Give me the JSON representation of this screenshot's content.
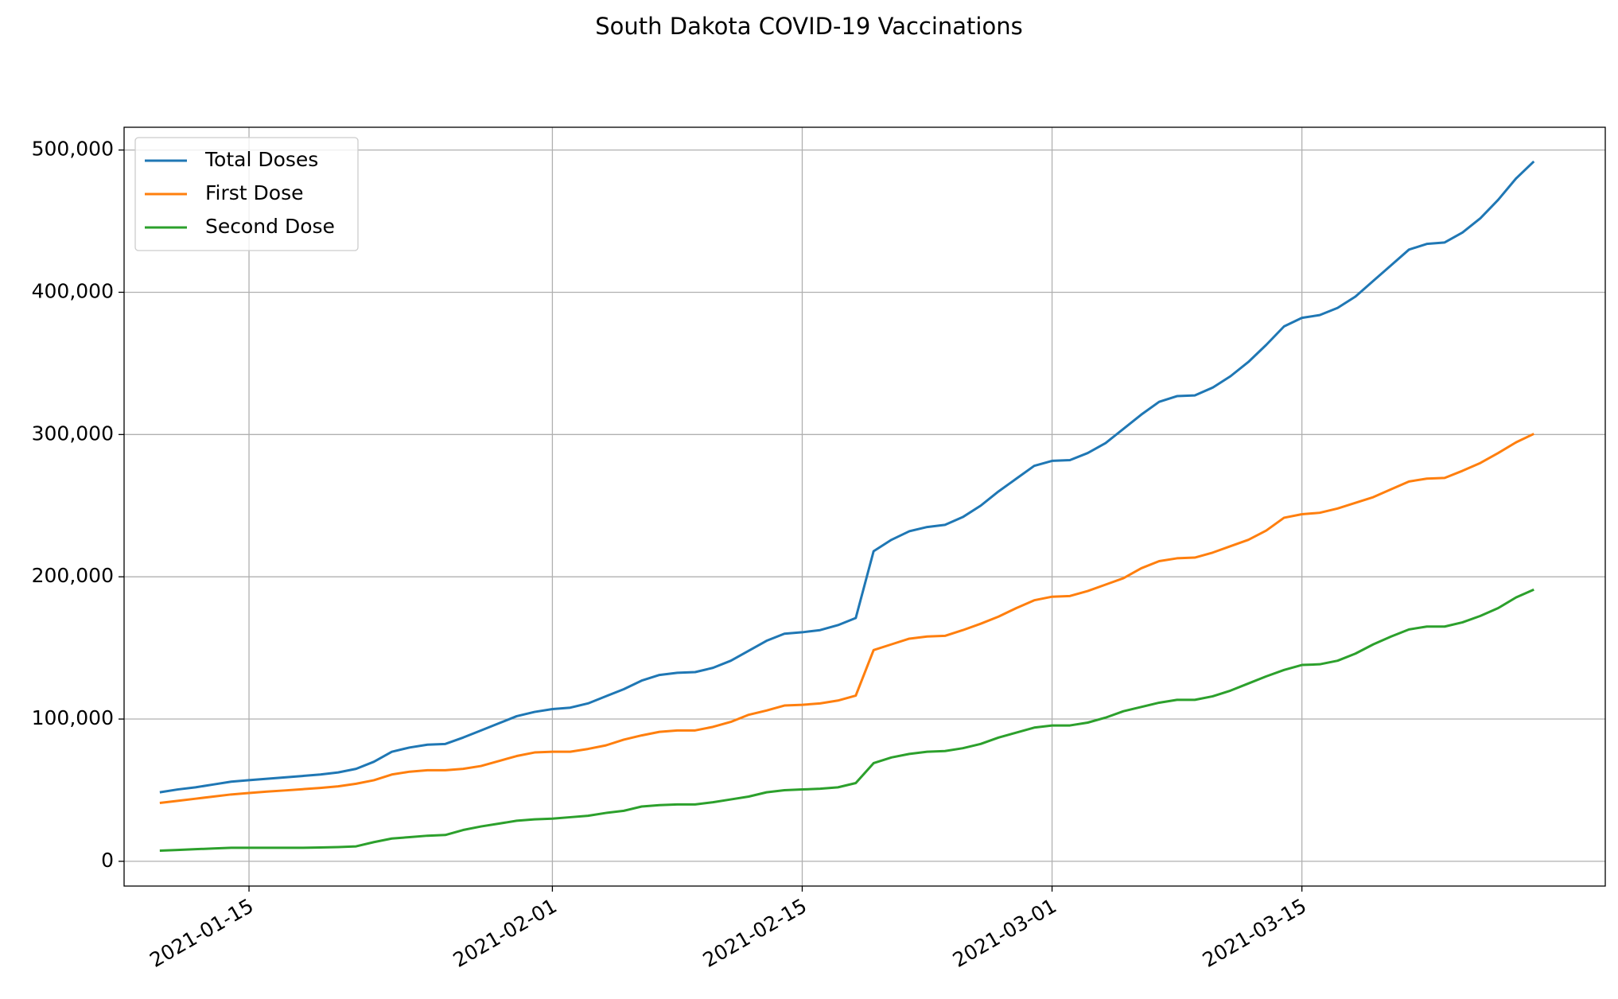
{
  "chart_data": {
    "type": "line",
    "title": "South Dakota COVID-19 Vaccinations",
    "x": [
      "2021-01-10",
      "2021-01-11",
      "2021-01-12",
      "2021-01-13",
      "2021-01-14",
      "2021-01-15",
      "2021-01-16",
      "2021-01-17",
      "2021-01-18",
      "2021-01-19",
      "2021-01-20",
      "2021-01-21",
      "2021-01-22",
      "2021-01-23",
      "2021-01-24",
      "2021-01-25",
      "2021-01-26",
      "2021-01-27",
      "2021-01-28",
      "2021-01-29",
      "2021-01-30",
      "2021-01-31",
      "2021-02-01",
      "2021-02-02",
      "2021-02-03",
      "2021-02-04",
      "2021-02-05",
      "2021-02-06",
      "2021-02-07",
      "2021-02-08",
      "2021-02-09",
      "2021-02-10",
      "2021-02-11",
      "2021-02-12",
      "2021-02-13",
      "2021-02-14",
      "2021-02-15",
      "2021-02-16",
      "2021-02-17",
      "2021-02-18",
      "2021-02-19",
      "2021-02-20",
      "2021-02-21",
      "2021-02-22",
      "2021-02-23",
      "2021-02-24",
      "2021-02-25",
      "2021-02-26",
      "2021-02-27",
      "2021-02-28",
      "2021-03-01",
      "2021-03-02",
      "2021-03-03",
      "2021-03-04",
      "2021-03-05",
      "2021-03-06",
      "2021-03-07",
      "2021-03-08",
      "2021-03-09",
      "2021-03-10",
      "2021-03-11",
      "2021-03-12",
      "2021-03-13",
      "2021-03-14",
      "2021-03-15",
      "2021-03-16",
      "2021-03-17",
      "2021-03-18",
      "2021-03-19",
      "2021-03-20",
      "2021-03-21",
      "2021-03-22",
      "2021-03-23",
      "2021-03-24",
      "2021-03-25",
      "2021-03-26",
      "2021-03-27",
      "2021-03-28"
    ],
    "series": [
      {
        "name": "Total Doses",
        "color": "#1f77b4",
        "values": [
          48500,
          50500,
          52000,
          54000,
          56000,
          57000,
          58000,
          59000,
          60000,
          61000,
          62500,
          65000,
          70000,
          77000,
          80000,
          82000,
          82500,
          87000,
          92000,
          97000,
          102000,
          105000,
          107000,
          108000,
          111000,
          116000,
          121000,
          127000,
          131000,
          132500,
          133000,
          136000,
          141000,
          148000,
          155000,
          160000,
          161000,
          162500,
          166000,
          171000,
          218000,
          226000,
          232000,
          235000,
          236500,
          242000,
          250000,
          260000,
          269000,
          278000,
          281500,
          282000,
          287000,
          294000,
          304000,
          314000,
          323000,
          327000,
          327500,
          333000,
          341000,
          351000,
          363000,
          376000,
          382000,
          384000,
          389000,
          397000,
          408000,
          419000,
          430000,
          434000,
          435000,
          442000,
          452000,
          465000,
          480000,
          492000
        ]
      },
      {
        "name": "First Dose",
        "color": "#ff7f0e",
        "values": [
          41000,
          42500,
          44000,
          45500,
          47000,
          48000,
          49000,
          49800,
          50700,
          51600,
          52700,
          54500,
          57000,
          61000,
          63000,
          64000,
          64000,
          65000,
          67000,
          70500,
          74000,
          76500,
          77000,
          77000,
          79000,
          81500,
          85500,
          88500,
          91000,
          92000,
          92000,
          94500,
          98000,
          103000,
          106000,
          109500,
          110000,
          111000,
          113000,
          116500,
          148500,
          152500,
          156500,
          158000,
          158500,
          162500,
          167000,
          172000,
          178000,
          183500,
          186000,
          186500,
          190000,
          194500,
          199000,
          206000,
          211000,
          213000,
          213500,
          217000,
          221500,
          226000,
          232500,
          241500,
          244000,
          245000,
          248000,
          252000,
          256000,
          261500,
          267000,
          269000,
          269500,
          274500,
          280000,
          287000,
          294500,
          300500
        ]
      },
      {
        "name": "Second Dose",
        "color": "#2ca02c",
        "values": [
          7500,
          8000,
          8500,
          9000,
          9500,
          9500,
          9500,
          9500,
          9500,
          9700,
          10000,
          10500,
          13500,
          16000,
          17000,
          18000,
          18500,
          22000,
          24500,
          26500,
          28500,
          29500,
          30000,
          31000,
          32000,
          34000,
          35500,
          38500,
          39500,
          40000,
          40000,
          41500,
          43500,
          45500,
          48500,
          50000,
          50500,
          51000,
          52000,
          55000,
          69000,
          73000,
          75500,
          77000,
          77500,
          79500,
          82500,
          87000,
          90500,
          94000,
          95500,
          95500,
          97500,
          101000,
          105500,
          108500,
          111500,
          113500,
          113500,
          116000,
          120000,
          125000,
          130000,
          134500,
          138000,
          138500,
          141000,
          146000,
          152500,
          158000,
          163000,
          165000,
          165000,
          168000,
          172500,
          178000,
          185500,
          191000
        ]
      }
    ],
    "xlim": [
      "2021-01-08",
      "2021-04-01"
    ],
    "xticks": [
      "2021-01-15",
      "2021-02-01",
      "2021-02-15",
      "2021-03-01",
      "2021-03-15"
    ],
    "ylim": [
      -17400,
      516000
    ],
    "yticks": [
      0,
      {
        "value": 100000,
        "label": "100,000"
      },
      {
        "value": 200000,
        "label": "200,000"
      },
      {
        "value": 300000,
        "label": "300,000"
      },
      {
        "value": 400000,
        "label": "400,000"
      },
      {
        "value": 500000,
        "label": "500,000"
      }
    ],
    "grid": true,
    "legend": "upper left"
  }
}
